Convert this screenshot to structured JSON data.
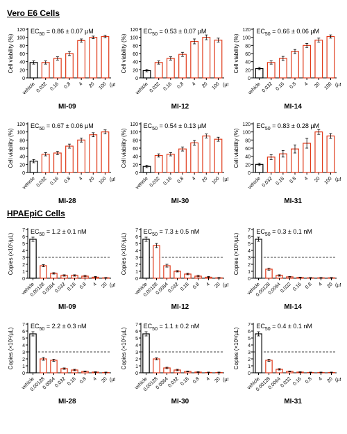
{
  "colors": {
    "bar_stroke": "#e03a1a",
    "bar_fill": "#ffffff",
    "first_bar_stroke": "#000000",
    "axis": "#000000",
    "dash": "#000000",
    "err": "#000000"
  },
  "sections": [
    {
      "title": "Vero E6 Cells",
      "ylabel": "Cell viability (%)",
      "ymax": 120,
      "yticks": [
        0,
        20,
        40,
        60,
        80,
        100,
        120
      ],
      "xunit": "(µM)",
      "categories": [
        "vehicle",
        "0.032",
        "0.16",
        "0.8",
        "4",
        "20",
        "100"
      ],
      "panels": [
        {
          "name": "MI-09",
          "ec50": "EC<sub>50</sub> = 0.86 ± 0.07 µM",
          "values": [
            38,
            38,
            48,
            60,
            92,
            100,
            102
          ],
          "err": [
            4,
            4,
            4,
            5,
            4,
            3,
            3
          ]
        },
        {
          "name": "MI-12",
          "ec50": "EC<sub>50</sub> = 0.53 ± 0.07 µM",
          "values": [
            18,
            38,
            48,
            58,
            90,
            100,
            93
          ],
          "err": [
            3,
            4,
            4,
            5,
            6,
            6,
            5
          ]
        },
        {
          "name": "MI-14",
          "ec50": "EC<sub>50</sub> = 0.66 ± 0.06 µM",
          "values": [
            23,
            38,
            48,
            65,
            80,
            93,
            102
          ],
          "err": [
            3,
            4,
            5,
            5,
            5,
            5,
            4
          ]
        },
        {
          "name": "MI-28",
          "ec50": "EC<sub>50</sub> = 0.67 ± 0.06 µM",
          "values": [
            28,
            45,
            48,
            65,
            80,
            93,
            100
          ],
          "err": [
            4,
            4,
            4,
            5,
            5,
            5,
            5
          ]
        },
        {
          "name": "MI-30",
          "ec50": "EC<sub>50</sub> = 0.54 ± 0.13 µM",
          "values": [
            15,
            42,
            45,
            58,
            73,
            90,
            82
          ],
          "err": [
            3,
            4,
            4,
            5,
            6,
            5,
            5
          ]
        },
        {
          "name": "MI-31",
          "ec50": "EC<sub>50</sub> = 0.83 ± 0.28 µM",
          "values": [
            20,
            38,
            46,
            58,
            72,
            100,
            90
          ],
          "err": [
            3,
            6,
            8,
            10,
            12,
            6,
            6
          ]
        }
      ]
    },
    {
      "title": "HPAEpiC Cells",
      "ylabel": "Copies (×10⁵/µL)",
      "ymax": 7,
      "yticks": [
        0,
        1,
        2,
        3,
        4,
        5,
        6,
        7
      ],
      "xunit": "(µM)",
      "categories": [
        "vehicle",
        "0.00128",
        "0.0064",
        "0.032",
        "0.16",
        "0.8",
        "4",
        "20"
      ],
      "dash_at": 3,
      "panels": [
        {
          "name": "MI-09",
          "ec50": "EC<sub>50</sub> = 1.2 ± 0.1 nM",
          "values": [
            5.6,
            1.8,
            0.7,
            0.4,
            0.4,
            0.3,
            0.15,
            0.05
          ],
          "err": [
            0.3,
            0.15,
            0.1,
            0.1,
            0.1,
            0.1,
            0.1,
            0.05
          ]
        },
        {
          "name": "MI-12",
          "ec50": "EC<sub>50</sub> = 7.3 ± 0.5 nM",
          "values": [
            5.6,
            4.7,
            1.8,
            1.0,
            0.6,
            0.3,
            0.15,
            0.05
          ],
          "err": [
            0.3,
            0.3,
            0.2,
            0.1,
            0.1,
            0.1,
            0.1,
            0.05
          ]
        },
        {
          "name": "MI-14",
          "ec50": "EC<sub>50</sub> = 0.3 ± 0.1 nM",
          "values": [
            5.6,
            1.3,
            0.4,
            0.2,
            0.1,
            0.05,
            0.05,
            0.05
          ],
          "err": [
            0.3,
            0.15,
            0.1,
            0.05,
            0.05,
            0.05,
            0.05,
            0.05
          ]
        },
        {
          "name": "MI-28",
          "ec50": "EC<sub>50</sub> = 2.2 ± 0.3 nM",
          "values": [
            5.6,
            2.0,
            1.8,
            0.6,
            0.4,
            0.2,
            0.1,
            0.05
          ],
          "err": [
            0.3,
            0.2,
            0.15,
            0.1,
            0.1,
            0.05,
            0.05,
            0.05
          ]
        },
        {
          "name": "MI-30",
          "ec50": "EC<sub>50</sub> = 1.1 ± 0.2 nM",
          "values": [
            5.6,
            2.0,
            0.7,
            0.4,
            0.2,
            0.1,
            0.05,
            0.05
          ],
          "err": [
            0.3,
            0.15,
            0.1,
            0.1,
            0.05,
            0.05,
            0.05,
            0.05
          ]
        },
        {
          "name": "MI-31",
          "ec50": "EC<sub>50</sub> = 0.4 ± 0.1 nM",
          "values": [
            5.6,
            1.8,
            0.5,
            0.2,
            0.1,
            0.05,
            0.05,
            0.05
          ],
          "err": [
            0.3,
            0.15,
            0.1,
            0.05,
            0.05,
            0.05,
            0.05,
            0.05
          ]
        }
      ]
    }
  ]
}
